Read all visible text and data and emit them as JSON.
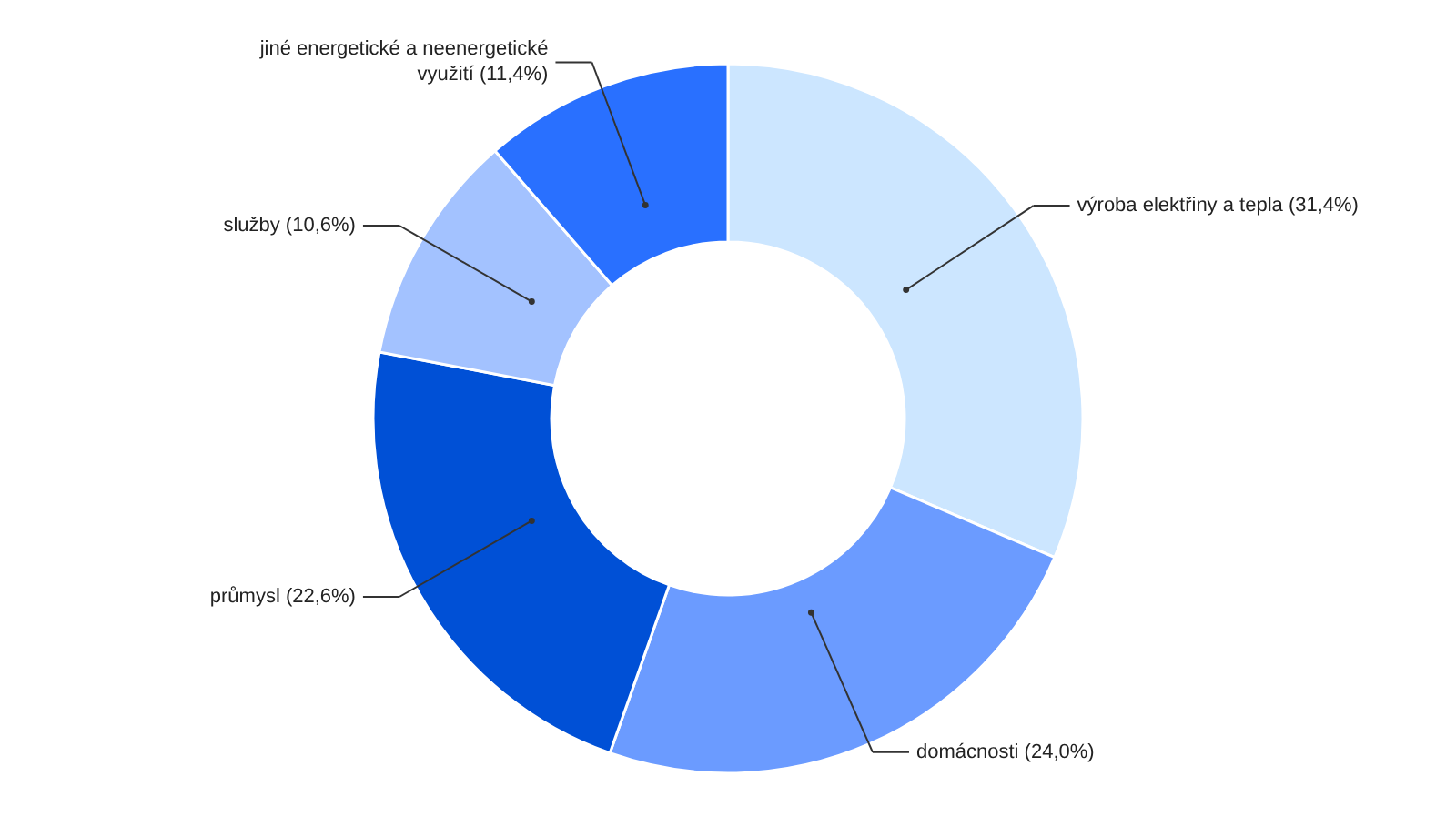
{
  "chart_data": {
    "type": "donut",
    "categories": [
      "výroba elektřiny a tepla",
      "domácnosti",
      "průmysl",
      "služby",
      "jiné energetické a neenergetické využití"
    ],
    "values": [
      31.4,
      24.0,
      22.6,
      10.6,
      11.4
    ],
    "value_labels": [
      "(31,4%)",
      "(24,0%)",
      "(22,6%)",
      "(10,6%)",
      "(11,4%)"
    ],
    "colors": [
      "#cce6ff",
      "#6b9bff",
      "#0050d6",
      "#a3c2ff",
      "#2970ff"
    ],
    "legend": false
  }
}
